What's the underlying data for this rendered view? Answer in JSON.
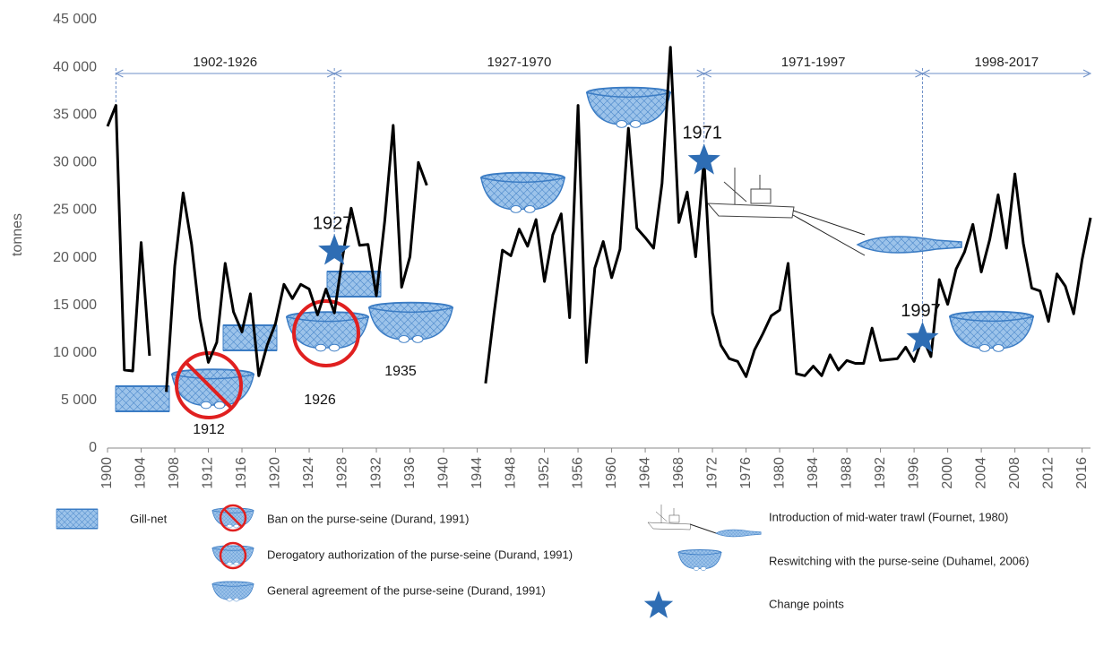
{
  "chart_data": {
    "type": "line",
    "y_label": "tonnes",
    "xlim": [
      1900,
      2017
    ],
    "xticks": [
      1900,
      1904,
      1908,
      1912,
      1916,
      1920,
      1924,
      1928,
      1932,
      1936,
      1940,
      1944,
      1948,
      1952,
      1956,
      1960,
      1964,
      1968,
      1972,
      1976,
      1980,
      1984,
      1988,
      1992,
      1996,
      2000,
      2004,
      2008,
      2012,
      2016
    ],
    "ylim": [
      0,
      45000
    ],
    "yticks": [
      0,
      {
        "value": 5000,
        "label": "5 000"
      },
      {
        "value": 10000,
        "label": "10 000"
      },
      {
        "value": 15000,
        "label": "15 000"
      },
      {
        "value": 20000,
        "label": "20 000"
      },
      {
        "value": 25000,
        "label": "25 000"
      },
      {
        "value": 30000,
        "label": "30 000"
      },
      {
        "value": 35000,
        "label": "35 000"
      },
      {
        "value": 40000,
        "label": "40 000"
      },
      {
        "value": 45000,
        "label": "45 000"
      }
    ],
    "color": "#000000",
    "x": [
      1900,
      1901,
      1902,
      1903,
      1904,
      1905,
      1906,
      1907,
      1908,
      1909,
      1910,
      1911,
      1912,
      1913,
      1914,
      1915,
      1916,
      1917,
      1918,
      1919,
      1920,
      1921,
      1922,
      1923,
      1924,
      1925,
      1926,
      1927,
      1928,
      1929,
      1930,
      1931,
      1932,
      1933,
      1934,
      1935,
      1936,
      1937,
      1938,
      1939,
      1940,
      1941,
      1942,
      1943,
      1944,
      1945,
      1946,
      1947,
      1948,
      1949,
      1950,
      1951,
      1952,
      1953,
      1954,
      1955,
      1956,
      1957,
      1958,
      1959,
      1960,
      1961,
      1962,
      1963,
      1964,
      1965,
      1966,
      1967,
      1968,
      1969,
      1970,
      1971,
      1972,
      1973,
      1974,
      1975,
      1976,
      1977,
      1978,
      1979,
      1980,
      1981,
      1982,
      1983,
      1984,
      1985,
      1986,
      1987,
      1988,
      1989,
      1990,
      1991,
      1992,
      1993,
      1994,
      1995,
      1996,
      1997,
      1998,
      1999,
      2000,
      2001,
      2002,
      2003,
      2004,
      2005,
      2006,
      2007,
      2008,
      2009,
      2010,
      2011,
      2012,
      2013,
      2014,
      2015,
      2016,
      2017
    ],
    "values": [
      33800,
      36000,
      8200,
      8100,
      21600,
      9700,
      null,
      5900,
      19100,
      26800,
      21400,
      13600,
      9000,
      11100,
      19400,
      14300,
      12200,
      16200,
      7600,
      10800,
      13100,
      17200,
      15700,
      17200,
      16700,
      14000,
      16700,
      14200,
      20200,
      25200,
      21300,
      21400,
      16000,
      23900,
      33900,
      16900,
      20100,
      30000,
      27600,
      null,
      null,
      null,
      null,
      null,
      null,
      6800,
      14100,
      20800,
      20200,
      23000,
      21200,
      24000,
      17500,
      22400,
      24600,
      13700,
      36000,
      9000,
      18900,
      21700,
      17900,
      20900,
      33600,
      23100,
      22100,
      21000,
      27800,
      42100,
      23700,
      26900,
      20100,
      30300,
      14200,
      10800,
      9400,
      9100,
      7500,
      10300,
      12000,
      13900,
      14500,
      19400,
      7800,
      7600,
      8600,
      7600,
      9800,
      8200,
      9200,
      8900,
      8900,
      12600,
      9200,
      9300,
      9400,
      10600,
      9100,
      11600,
      9600,
      17700,
      15100,
      18800,
      20600,
      23500,
      18500,
      21900,
      26600,
      21000,
      28800,
      21500,
      16800,
      16500,
      13300,
      18300,
      17000,
      14100,
      19800,
      24200
    ],
    "periods": [
      {
        "label": "1902-1926",
        "start": 1901,
        "end": 1927
      },
      {
        "label": "1927-1970",
        "start": 1927,
        "end": 1971
      },
      {
        "label": "1971-1997",
        "start": 1971,
        "end": 1997
      },
      {
        "label": "1998-2017",
        "start": 1997,
        "end": 2017
      }
    ],
    "change_points": [
      {
        "x": 1927,
        "y": 20700
      },
      {
        "x": 1971,
        "y": 30200
      },
      {
        "x": 1997,
        "y": 11500
      }
    ],
    "annotations": [
      "1912",
      "1926",
      "1935"
    ],
    "legend": [
      "Gill-net",
      "Ban on the purse-seine (Durand, 1991)",
      "Derogatory authorization of the purse-seine (Durand, 1991)",
      "General agreement of the purse-seine (Durand, 1991)",
      "Introduction of mid-water trawl (Fournet, 1980)",
      "Reswitching with the purse-seine (Duhamel, 2006)",
      "Change points"
    ]
  }
}
